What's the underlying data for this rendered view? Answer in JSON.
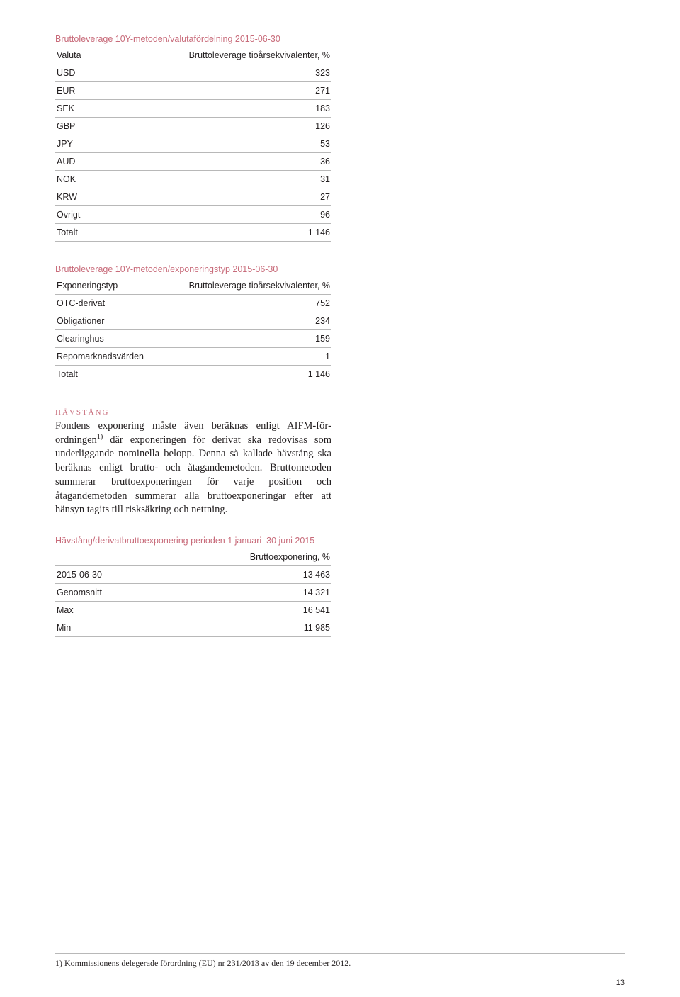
{
  "colors": {
    "accent": "#c86b7a",
    "text": "#231f20",
    "rule": "#b8b8b8",
    "background": "#ffffff"
  },
  "table1": {
    "title": "Bruttoleverage 10Y-metoden/valutafördelning 2015-06-30",
    "col_label_left": "Valuta",
    "col_label_right": "Bruttoleverage tioårsekvivalenter, %",
    "rows": [
      {
        "label": "USD",
        "value": "323"
      },
      {
        "label": "EUR",
        "value": "271"
      },
      {
        "label": "SEK",
        "value": "183"
      },
      {
        "label": "GBP",
        "value": "126"
      },
      {
        "label": "JPY",
        "value": "53"
      },
      {
        "label": "AUD",
        "value": "36"
      },
      {
        "label": "NOK",
        "value": "31"
      },
      {
        "label": "KRW",
        "value": "27"
      },
      {
        "label": "Övrigt",
        "value": "96"
      },
      {
        "label": "Totalt",
        "value": "1 146"
      }
    ]
  },
  "table2": {
    "title": "Bruttoleverage 10Y-metoden/exponeringstyp 2015-06-30",
    "col_label_left": "Exponeringstyp",
    "col_label_right": "Bruttoleverage tioårsekvivalenter, %",
    "rows": [
      {
        "label": "OTC-derivat",
        "value": "752"
      },
      {
        "label": "Obligationer",
        "value": "234"
      },
      {
        "label": "Clearinghus",
        "value": "159"
      },
      {
        "label": "Repomarknadsvärden",
        "value": "1"
      },
      {
        "label": "Totalt",
        "value": "1 146"
      }
    ]
  },
  "section": {
    "heading": "hävstång",
    "body_html": "Fondens exponering måste även beräknas enligt AIFM-för­ordningen<sup>1)</sup> där exponeringen för derivat ska redovisas som underliggande nominella belopp. Denna så kallade hävstång ska beräknas enligt brutto- och åtagandemetoden. Brutto­metoden summerar bruttoexponeringen för varje position och åtagandemetoden summerar alla bruttoexponeringar efter att hänsyn tagits till risksäkring och nettning."
  },
  "table3": {
    "title": "Hävstång/derivatbruttoexponering perioden 1 januari–30 juni 2015",
    "col_label_left": "",
    "col_label_right": "Bruttoexponering, %",
    "rows": [
      {
        "label": "2015-06-30",
        "value": "13 463"
      },
      {
        "label": "Genomsnitt",
        "value": "14 321"
      },
      {
        "label": "Max",
        "value": "16 541"
      },
      {
        "label": "Min",
        "value": "11 985"
      }
    ]
  },
  "footnote": "1) Kommissionens delegerade förordning (EU) nr 231/2013 av den 19 december 2012.",
  "page_number": "13"
}
